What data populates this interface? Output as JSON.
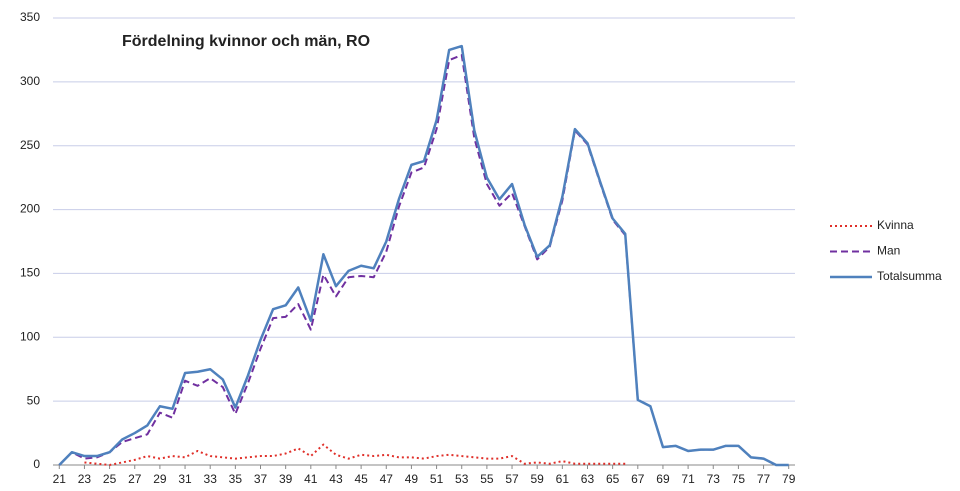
{
  "chart_data": {
    "type": "line",
    "title": "Fördelning kvinnor och män, RO",
    "x": [
      21,
      22,
      23,
      24,
      25,
      26,
      27,
      28,
      29,
      30,
      31,
      32,
      33,
      34,
      35,
      36,
      37,
      38,
      39,
      40,
      41,
      42,
      43,
      44,
      45,
      46,
      47,
      48,
      49,
      50,
      51,
      52,
      53,
      54,
      55,
      56,
      57,
      58,
      59,
      60,
      61,
      62,
      63,
      64,
      65,
      66,
      67,
      68,
      69,
      70,
      71,
      72,
      73,
      74,
      75,
      76,
      77,
      78,
      79
    ],
    "series": [
      {
        "name": "Kvinna",
        "color": "#e0302a",
        "dash": "dotted",
        "values": [
          null,
          null,
          2,
          1,
          0,
          2,
          4,
          7,
          5,
          7,
          6,
          11,
          7,
          6,
          5,
          6,
          7,
          7,
          9,
          13,
          7,
          16,
          8,
          5,
          8,
          7,
          8,
          6,
          6,
          5,
          7,
          8,
          7,
          6,
          5,
          5,
          7,
          1,
          2,
          1,
          3,
          1,
          1,
          1,
          1,
          1,
          null,
          null,
          null,
          null,
          null,
          null,
          null,
          null,
          null,
          null,
          null,
          null,
          null
        ]
      },
      {
        "name": "Man",
        "color": "#7030a0",
        "dash": "dashed",
        "values": [
          0,
          10,
          5,
          6,
          10,
          18,
          21,
          24,
          41,
          37,
          66,
          62,
          68,
          61,
          40,
          64,
          91,
          115,
          116,
          126,
          106,
          149,
          132,
          147,
          148,
          147,
          167,
          202,
          229,
          233,
          263,
          317,
          321,
          256,
          220,
          203,
          213,
          187,
          161,
          171,
          207,
          262,
          251,
          221,
          192,
          180,
          51,
          46,
          14,
          15,
          11,
          12,
          12,
          15,
          15,
          6,
          5,
          0,
          0
        ]
      },
      {
        "name": "Totalsumma",
        "color": "#4f81bd",
        "dash": "solid",
        "values": [
          0,
          10,
          7,
          7,
          10,
          20,
          25,
          31,
          46,
          44,
          72,
          73,
          75,
          67,
          45,
          70,
          98,
          122,
          125,
          139,
          113,
          165,
          140,
          152,
          156,
          154,
          175,
          208,
          235,
          238,
          270,
          325,
          328,
          262,
          225,
          208,
          220,
          188,
          163,
          172,
          210,
          263,
          252,
          222,
          193,
          181,
          51,
          46,
          14,
          15,
          11,
          12,
          12,
          15,
          15,
          6,
          5,
          0,
          0
        ]
      }
    ],
    "xlim": [
      20.5,
      79.5
    ],
    "xticks": [
      21,
      23,
      25,
      27,
      29,
      31,
      33,
      35,
      37,
      39,
      41,
      43,
      45,
      47,
      49,
      51,
      53,
      55,
      57,
      59,
      61,
      63,
      65,
      67,
      69,
      71,
      73,
      75,
      77,
      79
    ],
    "ylim": [
      0,
      350
    ],
    "yticks": [
      0,
      50,
      100,
      150,
      200,
      250,
      300,
      350
    ],
    "grid": true,
    "legend": "right"
  }
}
